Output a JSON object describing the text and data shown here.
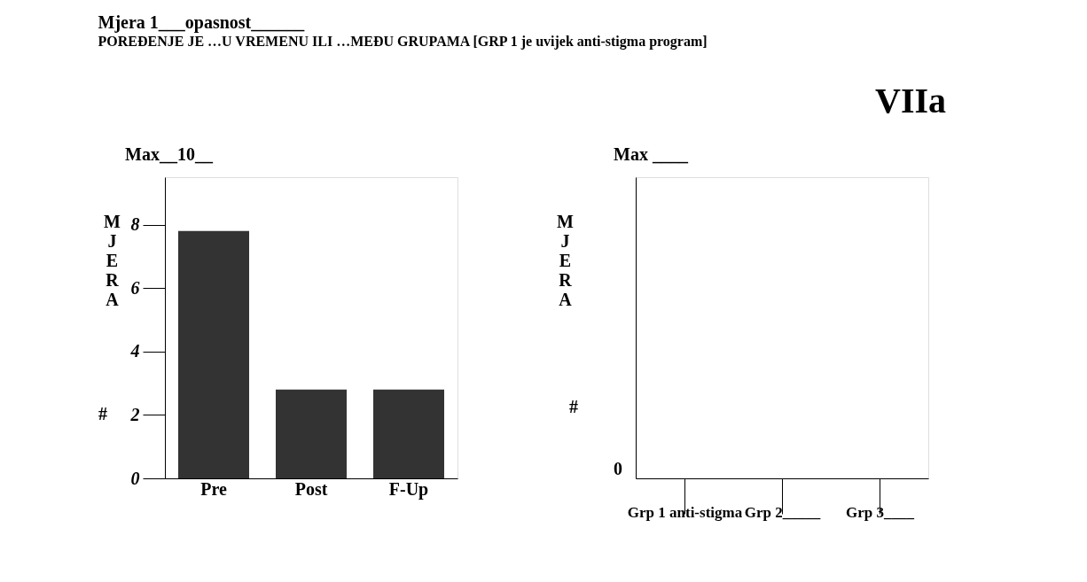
{
  "chart_data": [
    {
      "type": "bar",
      "title": "Mjera 1___opasnost______",
      "subtitle": "POREĐENJE JE …U VREMENU ILI …MEĐU GRUPAMA [GRP 1 je uvijek anti-stigma program]",
      "ylabel": "MJERA",
      "categories": [
        "Pre",
        "Post",
        "F-Up"
      ],
      "values": [
        7.8,
        2.8,
        2.8
      ],
      "color": "#333333",
      "ylim": [
        0,
        9.5
      ],
      "yticks": [
        0,
        2,
        4,
        6,
        8
      ],
      "grid": false,
      "annotations": [
        "Max__10__",
        "#"
      ]
    },
    {
      "type": "other",
      "ylabel": "MJERA",
      "categories": [
        "Grp 1 anti-stigma",
        "Grp 2_____",
        "Grp 3____"
      ],
      "annotations": [
        "Max ____",
        "#",
        "0",
        "VIIa"
      ]
    }
  ]
}
